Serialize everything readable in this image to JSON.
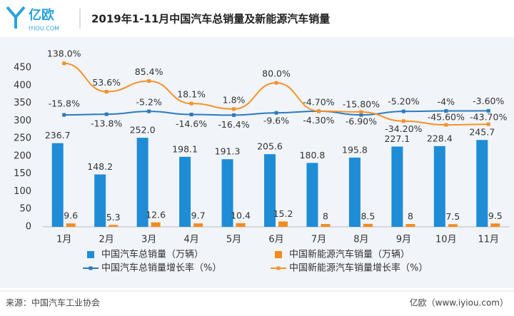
{
  "header": {
    "logo": "亿欧",
    "logo_sub": "IYIOU.COM"
  },
  "footer": {
    "source": "来源：中国汽车工业协会",
    "site": "亿欧（www.iyiou.com）"
  },
  "chart_data": {
    "type": "bar",
    "title": "2019年1-11月中国汽车总销量及新能源汽车销量",
    "categories": [
      "1月",
      "2月",
      "3月",
      "4月",
      "5月",
      "6月",
      "7月",
      "8月",
      "9月",
      "10月",
      "11月"
    ],
    "ylim": [
      0,
      450
    ],
    "yticks": [
      0,
      50,
      100,
      150,
      200,
      250,
      300,
      350,
      400,
      450
    ],
    "y2lim": [
      -350,
      125
    ],
    "grid": false,
    "legend": "bottom",
    "series": [
      {
        "name": "中国汽车总销量（万辆）",
        "type": "bar",
        "color": "#1f8dd6",
        "values": [
          236.7,
          148.2,
          252.0,
          198.1,
          191.3,
          205.6,
          180.8,
          195.8,
          227.1,
          228.4,
          245.7
        ],
        "value_labels": [
          "236.7",
          "148.2",
          "252.0",
          "198.1",
          "191.3",
          "205.6",
          "180.8",
          "195.8",
          "227.1",
          "228.4",
          "245.7"
        ]
      },
      {
        "name": "中国新能源汽车销量（万辆）",
        "type": "bar",
        "color": "#f28c1e",
        "values": [
          9.6,
          5.3,
          12.6,
          9.7,
          10.4,
          15.2,
          8,
          8.5,
          8,
          7.5,
          9.5
        ]
      },
      {
        "name": "中国汽车总销量增长率（%）",
        "type": "line",
        "axis": "y2",
        "color": "#2b7bbf",
        "values": [
          -15.8,
          -13.8,
          -5.2,
          -14.6,
          -16.4,
          -9.6,
          -4.7,
          -15.8,
          -5.2,
          -4,
          -3.6
        ],
        "value_labels": [
          "-15.8%",
          "-13.8%",
          "-5.2%",
          "-14.6%",
          "-16.4%",
          "-9.6%",
          "-4.70%",
          "-15.80%",
          "-5.20%",
          "-4%",
          "-3.60%"
        ]
      },
      {
        "name": "中国新能源汽车销量增长率（%）",
        "type": "line",
        "axis": "y2",
        "color": "#f5922a",
        "values": [
          138.0,
          53.6,
          85.4,
          18.1,
          1.8,
          80.0,
          -4.3,
          -6.9,
          -34.2,
          -45.6,
          -43.7
        ],
        "value_labels": [
          "138.0%",
          "53.6%",
          "85.4%",
          "18.1%",
          "1.8%",
          "80.0%",
          "-4.30%",
          "-6.90%",
          "-34.20%",
          "-45.60%",
          "-43.70%"
        ]
      }
    ]
  }
}
